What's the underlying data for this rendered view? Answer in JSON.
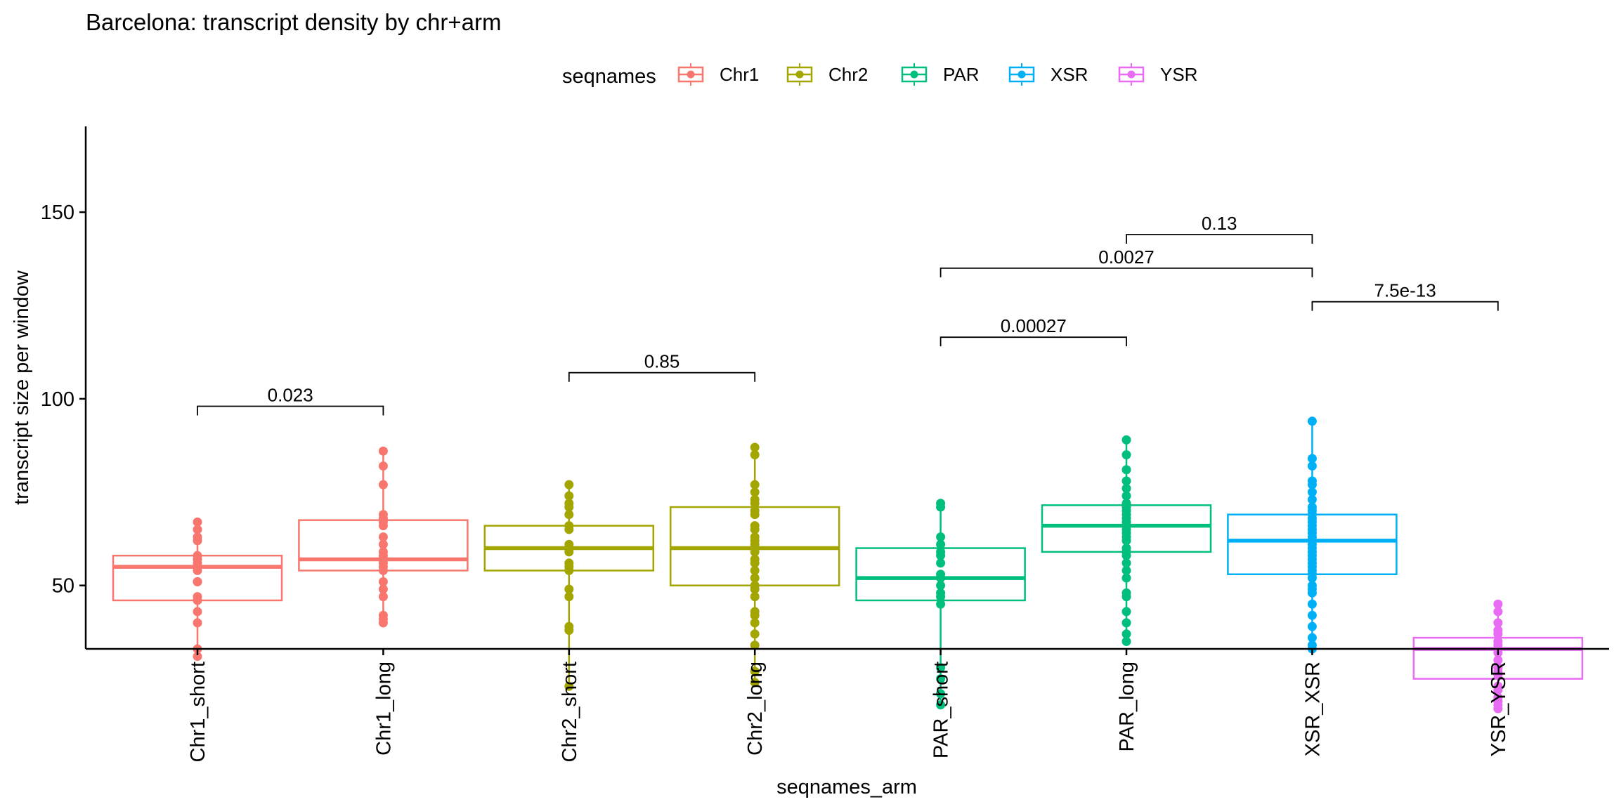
{
  "chart_data": {
    "type": "boxplot",
    "title": "Barcelona: transcript density by chr+arm",
    "xlabel": "seqnames_arm",
    "ylabel": "transcript size per window",
    "ylim": [
      10,
      150
    ],
    "yticks": [
      50,
      100,
      150
    ],
    "grid": false,
    "legend": {
      "title": "seqnames",
      "position": "top",
      "entries": [
        {
          "name": "Chr1",
          "color": "#F8766D"
        },
        {
          "name": "Chr2",
          "color": "#A3A500"
        },
        {
          "name": "PAR",
          "color": "#00BF7D"
        },
        {
          "name": "XSR",
          "color": "#00B0F6"
        },
        {
          "name": "YSR",
          "color": "#E76BF3"
        }
      ]
    },
    "categories": [
      "Chr1_short",
      "Chr1_long",
      "Chr2_short",
      "Chr2_long",
      "PAR_short",
      "PAR_long",
      "XSR_XSR",
      "YSR_YSR"
    ],
    "boxes": [
      {
        "category": "Chr1_short",
        "group": "Chr1",
        "q1": 46,
        "median": 55,
        "q3": 58,
        "whisker_low": 31,
        "whisker_high": 67,
        "points": [
          67,
          65,
          63,
          62,
          58,
          57,
          56,
          55,
          54,
          51,
          51,
          47,
          46,
          43,
          40,
          33,
          31
        ]
      },
      {
        "category": "Chr1_long",
        "group": "Chr1",
        "q1": 54,
        "median": 57,
        "q3": 67.5,
        "whisker_low": 40,
        "whisker_high": 86,
        "points": [
          86,
          82,
          77,
          69,
          68,
          67,
          66,
          63,
          61,
          59,
          58,
          57,
          56,
          55,
          54,
          51,
          49,
          47,
          42,
          41,
          40
        ]
      },
      {
        "category": "Chr2_short",
        "group": "Chr2",
        "q1": 54,
        "median": 60,
        "q3": 66,
        "whisker_low": 23,
        "whisker_high": 77,
        "points": [
          77,
          74,
          72,
          71,
          69,
          66,
          65,
          61,
          60,
          59,
          56,
          55,
          54,
          49,
          47,
          39,
          38,
          23
        ]
      },
      {
        "category": "Chr2_long",
        "group": "Chr2",
        "q1": 50,
        "median": 60,
        "q3": 71,
        "whisker_low": 24,
        "whisker_high": 87,
        "points": [
          87,
          85,
          77,
          75,
          73,
          72,
          70,
          69,
          66,
          65,
          63,
          62,
          61,
          60,
          59,
          57,
          56,
          54,
          52,
          50,
          49,
          47,
          43,
          42,
          40,
          37,
          34,
          27,
          24
        ]
      },
      {
        "category": "PAR_short",
        "group": "PAR",
        "q1": 46,
        "median": 52,
        "q3": 60,
        "whisker_low": 18,
        "whisker_high": 72,
        "points": [
          72,
          71,
          63,
          61,
          59,
          58,
          56,
          53,
          52,
          50,
          48,
          47,
          45,
          28,
          25,
          21,
          18
        ]
      },
      {
        "category": "PAR_long",
        "group": "PAR",
        "q1": 59,
        "median": 66,
        "q3": 71.5,
        "whisker_low": 35,
        "whisker_high": 89,
        "points": [
          89,
          85,
          81,
          78,
          76,
          74,
          72,
          71,
          70,
          69,
          68,
          67,
          66,
          65,
          64,
          63,
          62,
          60,
          59,
          58,
          56,
          54,
          52,
          48,
          47,
          43,
          40,
          37,
          35
        ]
      },
      {
        "category": "XSR_XSR",
        "group": "XSR",
        "q1": 53,
        "median": 62,
        "q3": 69,
        "whisker_low": 33,
        "whisker_high": 94,
        "points": [
          94,
          84,
          82,
          78,
          77,
          75,
          73,
          71,
          70,
          69,
          68,
          67,
          66,
          65,
          64,
          63,
          62,
          61,
          60,
          59,
          58,
          57,
          56,
          55,
          54,
          53,
          52,
          50,
          49,
          48,
          45,
          42,
          39,
          36,
          34,
          33
        ]
      },
      {
        "category": "YSR_YSR",
        "group": "YSR",
        "q1": 25,
        "median": 33,
        "q3": 36,
        "whisker_low": 17,
        "whisker_high": 45,
        "points": [
          45,
          43,
          40,
          38,
          37,
          35,
          34,
          33,
          32,
          30,
          28,
          27,
          26,
          23,
          22,
          20,
          19,
          18,
          17
        ]
      }
    ],
    "comparisons": [
      {
        "from": "Chr1_short",
        "to": "Chr1_long",
        "label": "0.023",
        "y": 98
      },
      {
        "from": "Chr2_short",
        "to": "Chr2_long",
        "label": "0.85",
        "y": 107
      },
      {
        "from": "PAR_short",
        "to": "PAR_long",
        "label": "0.00027",
        "y": 116.5
      },
      {
        "from": "XSR_XSR",
        "to": "YSR_YSR",
        "label": "7.5e-13",
        "y": 126
      },
      {
        "from": "PAR_short",
        "to": "XSR_XSR",
        "label": "0.0027",
        "y": 135
      },
      {
        "from": "PAR_long",
        "to": "XSR_XSR",
        "label": "0.13",
        "y": 144
      }
    ]
  }
}
